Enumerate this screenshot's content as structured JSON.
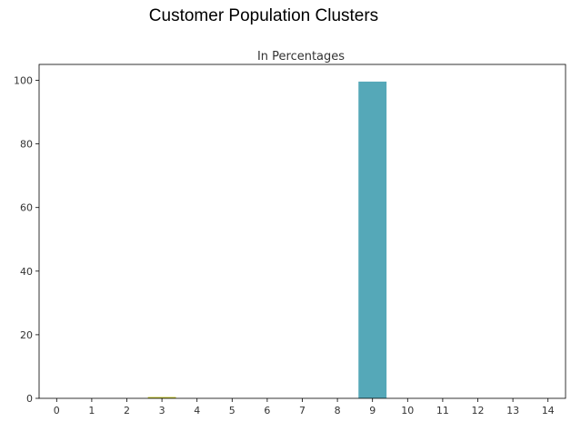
{
  "figure": {
    "title": "Customer Population Clusters"
  },
  "chart_data": {
    "type": "bar",
    "title": "In Percentages",
    "xlabel": "",
    "ylabel": "",
    "categories": [
      "0",
      "1",
      "2",
      "3",
      "4",
      "5",
      "6",
      "7",
      "8",
      "9",
      "10",
      "11",
      "12",
      "13",
      "14"
    ],
    "values": [
      0.0,
      0.0,
      0.0,
      0.4,
      0.0,
      0.0,
      0.0,
      0.0,
      0.0,
      99.6,
      0.0,
      0.0,
      0.0,
      0.0,
      0.0
    ],
    "colors": [
      "#1f77b4",
      "#ff7f0e",
      "#2ca02c",
      "#bcbd22",
      "#9467bd",
      "#8c564b",
      "#e377c2",
      "#7f7f7f",
      "#d62728",
      "#55a8b8",
      "#1f77b4",
      "#ff7f0e",
      "#2ca02c",
      "#d62728",
      "#9467bd"
    ],
    "ylim": [
      0,
      105
    ],
    "yticks": [
      0,
      20,
      40,
      60,
      80,
      100
    ],
    "grid": false,
    "legend": "none"
  }
}
